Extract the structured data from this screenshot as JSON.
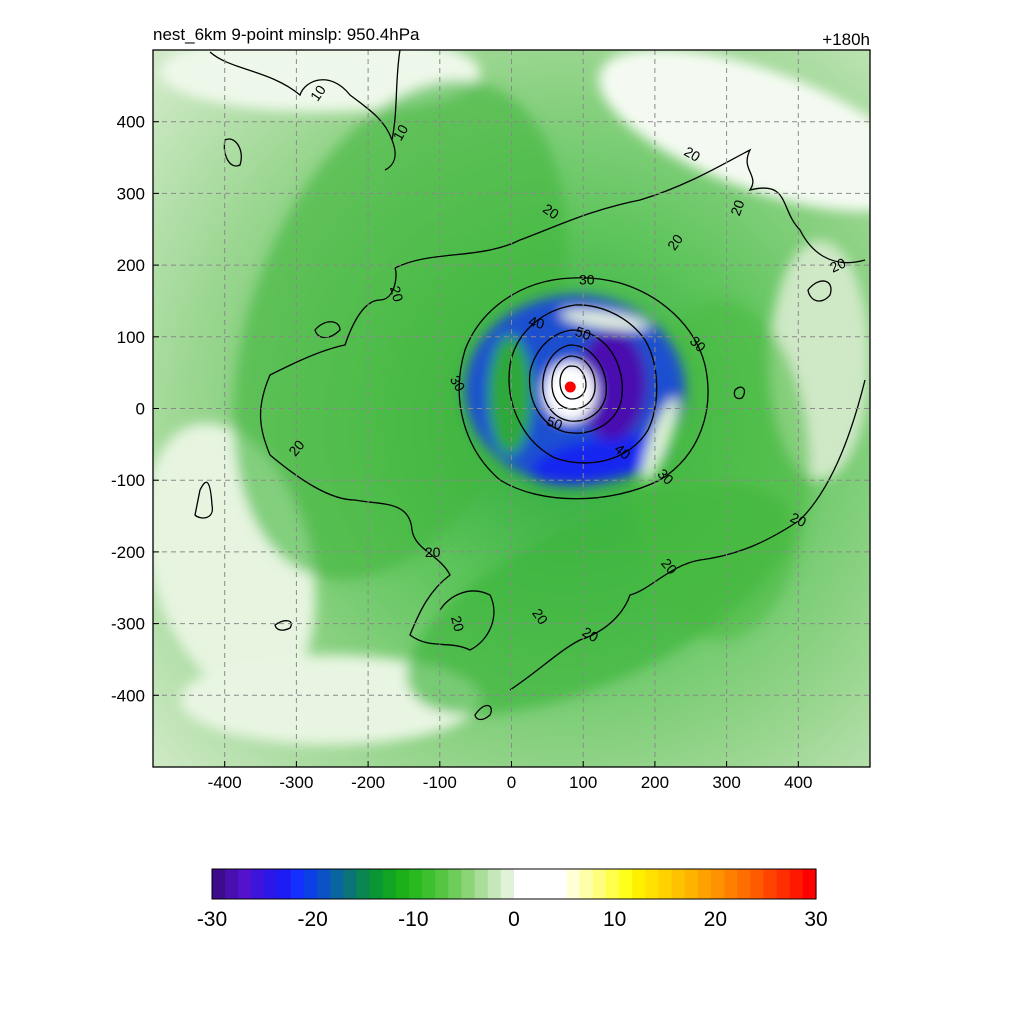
{
  "chart_data": {
    "type": "heatmap",
    "title": "nest_6km  9-point minslp: 950.4hPa",
    "subtitle_right": "+180h",
    "xlabel": "",
    "ylabel": "",
    "xlim": [
      -500,
      500
    ],
    "ylim": [
      -500,
      500
    ],
    "x_ticks": [
      -400,
      -300,
      -200,
      -100,
      0,
      100,
      200,
      300,
      400
    ],
    "y_ticks": [
      400,
      300,
      200,
      100,
      0,
      -100,
      -200,
      -300,
      -400
    ],
    "grid": true,
    "center": {
      "x": 82,
      "y": 30,
      "marker_color": "#ff0000"
    },
    "contour_levels": [
      10,
      20,
      30,
      40,
      50
    ],
    "contour_labels": [
      {
        "text": "10",
        "x": -270,
        "y": 440,
        "rot": 55
      },
      {
        "text": "10",
        "x": -155,
        "y": 385,
        "rot": 60
      },
      {
        "text": "20",
        "x": 252,
        "y": 355,
        "rot": -30
      },
      {
        "text": "20",
        "x": 55,
        "y": 275,
        "rot": -35
      },
      {
        "text": "20",
        "x": 315,
        "y": 280,
        "rot": 70
      },
      {
        "text": "20",
        "x": 228,
        "y": 232,
        "rot": 55
      },
      {
        "text": "20",
        "x": 455,
        "y": 200,
        "rot": 25
      },
      {
        "text": "20",
        "x": -160,
        "y": 160,
        "rot": -75
      },
      {
        "text": "20",
        "x": -300,
        "y": -55,
        "rot": 50
      },
      {
        "text": "20",
        "x": -110,
        "y": -200,
        "rot": 0
      },
      {
        "text": "20",
        "x": -75,
        "y": -300,
        "rot": -75
      },
      {
        "text": "20",
        "x": 40,
        "y": -290,
        "rot": -55
      },
      {
        "text": "20",
        "x": 110,
        "y": -315,
        "rot": -30
      },
      {
        "text": "20",
        "x": 220,
        "y": -220,
        "rot": -50
      },
      {
        "text": "20",
        "x": 400,
        "y": -155,
        "rot": -25
      },
      {
        "text": "30",
        "x": 105,
        "y": 180,
        "rot": 0
      },
      {
        "text": "30",
        "x": 260,
        "y": 90,
        "rot": -45
      },
      {
        "text": "30",
        "x": -75,
        "y": 35,
        "rot": -60
      },
      {
        "text": "30",
        "x": 215,
        "y": -95,
        "rot": -45
      },
      {
        "text": "40",
        "x": 35,
        "y": 120,
        "rot": -15
      },
      {
        "text": "40",
        "x": 155,
        "y": -60,
        "rot": -40
      },
      {
        "text": "50",
        "x": 100,
        "y": 105,
        "rot": -20
      },
      {
        "text": "50",
        "x": 60,
        "y": -20,
        "rot": -20
      }
    ],
    "colorbar": {
      "min": -30,
      "max": 30,
      "ticks": [
        -30,
        -20,
        -10,
        0,
        10,
        20,
        30
      ],
      "colors": [
        "#3c0c8c",
        "#4a0fb0",
        "#5412cc",
        "#3c14dc",
        "#2a18e8",
        "#1c1cf4",
        "#1430ff",
        "#0a40e6",
        "#0a52c6",
        "#0a64a0",
        "#0a7478",
        "#0a8650",
        "#0a9632",
        "#10a422",
        "#1cb018",
        "#2aba20",
        "#3cc02e",
        "#54c642",
        "#6ecc58",
        "#8cd478",
        "#aadd98",
        "#c6e8b8",
        "#e0f2d8",
        "#ffffff",
        "#ffffff",
        "#ffffff",
        "#ffffff",
        "#ffffd8",
        "#ffffaa",
        "#ffff7c",
        "#ffff4c",
        "#ffff1a",
        "#fff000",
        "#ffe200",
        "#ffd200",
        "#ffc200",
        "#ffb200",
        "#ffa200",
        "#ff9200",
        "#ff8000",
        "#ff6e00",
        "#ff5a00",
        "#ff4400",
        "#ff2e00",
        "#ff1800",
        "#ff0000"
      ]
    }
  }
}
